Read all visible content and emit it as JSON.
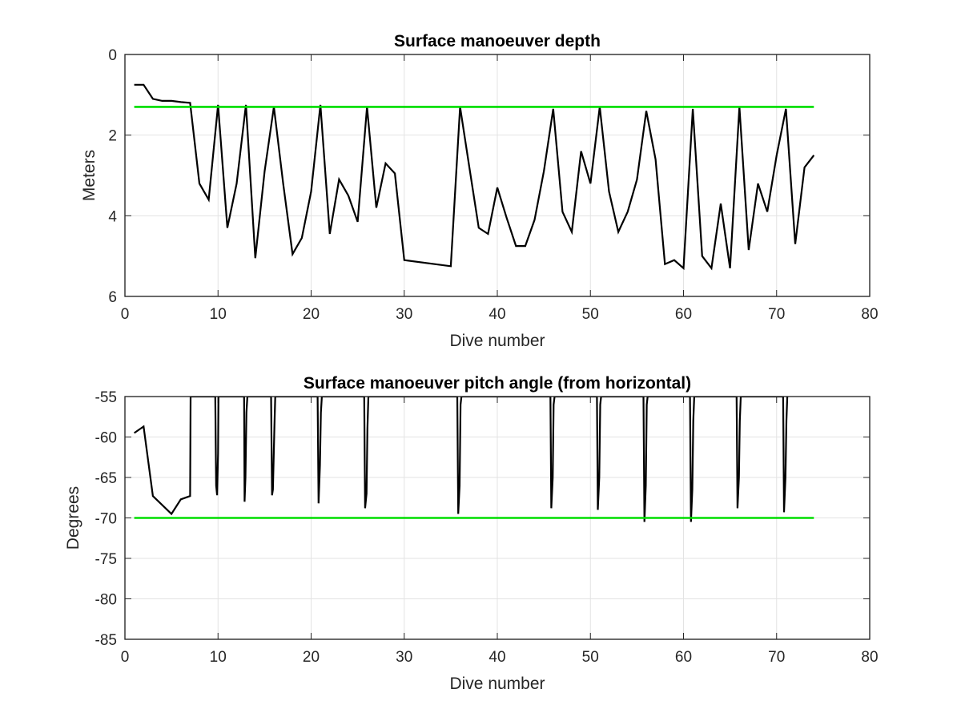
{
  "chart_data": [
    {
      "type": "line",
      "title": "Surface manoeuver depth",
      "xlabel": "Dive number",
      "ylabel": "Meters",
      "xlim": [
        0,
        80
      ],
      "ylim": [
        0,
        6
      ],
      "y_reversed": true,
      "xticks": [
        "0",
        "10",
        "20",
        "30",
        "40",
        "50",
        "60",
        "70",
        "80"
      ],
      "yticks": [
        "0",
        "2",
        "4",
        "6"
      ],
      "grid": true,
      "series": [
        {
          "color": "#000000",
          "x": [
            1,
            2,
            3,
            4,
            5,
            6,
            7,
            8,
            9,
            10,
            11,
            12,
            13,
            14,
            15,
            16,
            17,
            18,
            19,
            20,
            21,
            22,
            23,
            24,
            25,
            26,
            27,
            28,
            29,
            30,
            35,
            36,
            37,
            38,
            39,
            40,
            41,
            42,
            43,
            44,
            45,
            46,
            47,
            48,
            49,
            50,
            51,
            52,
            53,
            54,
            55,
            56,
            57,
            58,
            59,
            60,
            61,
            62,
            63,
            64,
            65,
            66,
            67,
            68,
            69,
            70,
            71,
            72,
            73,
            74
          ],
          "y": [
            0.75,
            0.75,
            1.1,
            1.15,
            1.15,
            1.18,
            1.2,
            3.2,
            3.6,
            1.25,
            4.3,
            3.2,
            1.25,
            5.05,
            2.9,
            1.3,
            3.2,
            4.95,
            4.55,
            3.4,
            1.25,
            4.45,
            3.1,
            3.5,
            4.15,
            1.3,
            3.8,
            2.7,
            2.95,
            5.1,
            5.25,
            1.3,
            2.8,
            4.3,
            4.45,
            3.3,
            4.05,
            4.75,
            4.75,
            4.1,
            2.9,
            1.35,
            3.9,
            4.4,
            2.4,
            3.2,
            1.3,
            3.4,
            4.4,
            3.9,
            3.1,
            1.4,
            2.6,
            5.2,
            5.1,
            5.3,
            1.35,
            5.0,
            5.3,
            3.7,
            5.3,
            1.3,
            4.85,
            3.2,
            3.9,
            2.5,
            1.35,
            4.7,
            2.8,
            2.5
          ]
        },
        {
          "color": "#00dd00",
          "x": [
            1,
            74
          ],
          "y": [
            1.3,
            1.3
          ]
        }
      ]
    },
    {
      "type": "line",
      "title": "Surface manoeuver pitch angle (from horizontal)",
      "xlabel": "Dive number",
      "ylabel": "Degrees",
      "xlim": [
        0,
        80
      ],
      "ylim": [
        -85,
        -55
      ],
      "xticks": [
        "0",
        "10",
        "20",
        "30",
        "40",
        "50",
        "60",
        "70",
        "80"
      ],
      "yticks": [
        "-55",
        "-60",
        "-65",
        "-70",
        "-75",
        "-80",
        "-85"
      ],
      "grid": true,
      "series": [
        {
          "color": "#000000",
          "x": [
            1,
            2,
            3,
            5,
            6,
            7,
            7.05,
            7.2,
            9.7,
            9.8,
            9.9,
            10.0,
            10.05,
            10.2,
            12.8,
            12.85,
            12.95,
            13.05,
            13.15,
            15.7,
            15.8,
            15.9,
            16.05,
            16.15,
            20.7,
            20.8,
            20.95,
            21.05,
            21.15,
            25.7,
            25.8,
            25.95,
            26.05,
            26.15,
            35.7,
            35.8,
            35.95,
            36.05,
            36.15,
            45.7,
            45.8,
            45.95,
            46.05,
            46.15,
            50.7,
            50.8,
            50.95,
            51.05,
            51.15,
            55.7,
            55.8,
            55.95,
            56.05,
            56.15,
            60.7,
            60.8,
            60.95,
            61.05,
            61.15,
            65.7,
            65.8,
            65.95,
            66.05,
            66.15,
            70.7,
            70.8,
            70.95,
            71.05,
            71.15
          ],
          "y": [
            -59.5,
            -58.7,
            -67.3,
            -69.5,
            -67.7,
            -67.3,
            -55,
            -55,
            -55,
            -66,
            -67.2,
            -62,
            -55,
            -55,
            -55,
            -68,
            -65,
            -57,
            -55,
            -55,
            -67.2,
            -66.5,
            -59,
            -55,
            -55,
            -68.2,
            -63.5,
            -57,
            -55,
            -55,
            -68.8,
            -67,
            -59,
            -55,
            -55,
            -69.5,
            -66,
            -56,
            -55,
            -55,
            -68.8,
            -65,
            -56,
            -55,
            -55,
            -69,
            -65,
            -56,
            -55,
            -55,
            -70.5,
            -66,
            -56,
            -55,
            -55,
            -70.5,
            -66.5,
            -58,
            -55,
            -55,
            -68.8,
            -65,
            -58,
            -55,
            -55,
            -69.3,
            -65,
            -58,
            -55
          ]
        },
        {
          "color": "#00dd00",
          "x": [
            1,
            74
          ],
          "y": [
            -70,
            -70
          ]
        }
      ]
    }
  ]
}
